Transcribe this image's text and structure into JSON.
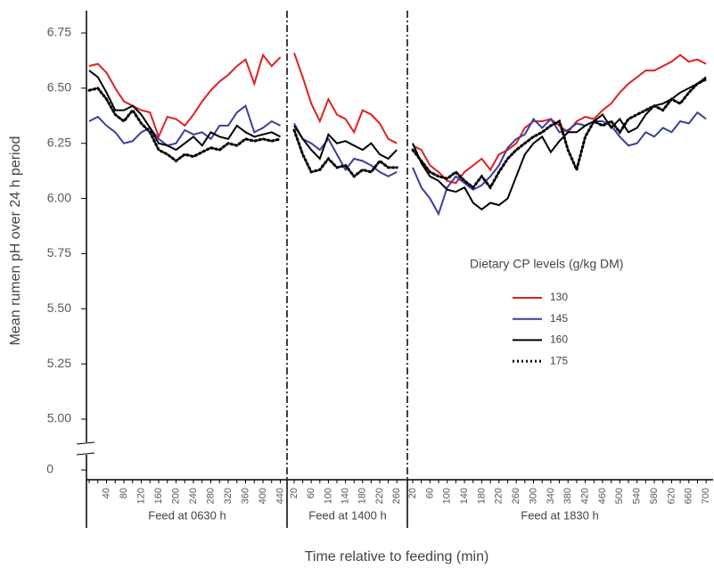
{
  "chart_data": {
    "type": "line",
    "y_label": "Mean rumen pH over 24 h period",
    "x_label": "Time relative to feeding (min)",
    "legend_title": "Dietary CP levels (g/kg DM)",
    "ylim": [
      5.0,
      6.75
    ],
    "yticks": [
      {
        "value": 5.0,
        "label": "5.00"
      },
      {
        "value": 5.25,
        "label": "5.25"
      },
      {
        "value": 5.5,
        "label": "5.50"
      },
      {
        "value": 5.75,
        "label": "5.75"
      },
      {
        "value": 6.0,
        "label": "6.00"
      },
      {
        "value": 6.25,
        "label": "6.25"
      },
      {
        "value": 6.5,
        "label": "6.50"
      },
      {
        "value": 6.75,
        "label": "6.75"
      }
    ],
    "ybreak_tick": 0,
    "panels": [
      {
        "label": "Feed at 0630 h",
        "categories": [
          null,
          null,
          "40",
          null,
          "80",
          null,
          "120",
          null,
          "160",
          null,
          "200",
          null,
          "240",
          null,
          "280",
          null,
          "320",
          null,
          "360",
          null,
          "400",
          null,
          "440"
        ]
      },
      {
        "label": "Feed at 1400 h",
        "categories": [
          "20",
          null,
          "60",
          null,
          "100",
          null,
          "140",
          null,
          "180",
          null,
          "220",
          null,
          "260"
        ]
      },
      {
        "label": "Feed at 1830 h",
        "categories": [
          "20",
          null,
          "60",
          null,
          "100",
          null,
          "140",
          null,
          "180",
          null,
          "220",
          null,
          "260",
          null,
          "300",
          null,
          "340",
          null,
          "380",
          null,
          "420",
          null,
          "460",
          null,
          "500",
          null,
          "540",
          null,
          "580",
          null,
          "620",
          null,
          "660",
          null,
          "700"
        ]
      }
    ],
    "series": [
      {
        "name": "130",
        "color": "#e02020",
        "style": "solid",
        "values": [
          [
            6.6,
            6.61,
            6.57,
            6.5,
            6.44,
            6.42,
            6.4,
            6.39,
            6.28,
            6.37,
            6.36,
            6.33,
            6.38,
            6.44,
            6.49,
            6.53,
            6.56,
            6.6,
            6.63,
            6.52,
            6.65,
            6.6,
            6.64
          ],
          [
            6.66,
            6.55,
            6.43,
            6.35,
            6.45,
            6.38,
            6.36,
            6.3,
            6.4,
            6.38,
            6.34,
            6.27,
            6.25
          ],
          [
            6.24,
            6.22,
            6.15,
            6.12,
            6.08,
            6.07,
            6.12,
            6.15,
            6.18,
            6.13,
            6.2,
            6.22,
            6.25,
            6.32,
            6.35,
            6.35,
            6.36,
            6.33,
            6.3,
            6.35,
            6.37,
            6.36,
            6.4,
            6.43,
            6.48,
            6.52,
            6.55,
            6.58,
            6.58,
            6.6,
            6.62,
            6.65,
            6.62,
            6.63,
            6.61
          ]
        ]
      },
      {
        "name": "145",
        "color": "#3a3f9e",
        "style": "solid",
        "values": [
          [
            6.35,
            6.37,
            6.33,
            6.3,
            6.25,
            6.26,
            6.3,
            6.32,
            6.27,
            6.24,
            6.25,
            6.31,
            6.29,
            6.3,
            6.27,
            6.33,
            6.33,
            6.39,
            6.42,
            6.3,
            6.32,
            6.35,
            6.33
          ],
          [
            6.34,
            6.27,
            6.25,
            6.22,
            6.27,
            6.2,
            6.13,
            6.18,
            6.17,
            6.15,
            6.12,
            6.1,
            6.12
          ],
          [
            6.14,
            6.05,
            6.0,
            5.93,
            6.05,
            6.1,
            6.07,
            6.04,
            6.06,
            6.1,
            6.15,
            6.23,
            6.27,
            6.29,
            6.36,
            6.32,
            6.36,
            6.3,
            6.31,
            6.34,
            6.33,
            6.35,
            6.35,
            6.33,
            6.28,
            6.24,
            6.25,
            6.3,
            6.28,
            6.32,
            6.3,
            6.35,
            6.34,
            6.39,
            6.36
          ]
        ]
      },
      {
        "name": "160",
        "color": "#000000",
        "style": "solid",
        "values": [
          [
            6.58,
            6.55,
            6.48,
            6.4,
            6.4,
            6.42,
            6.38,
            6.32,
            6.25,
            6.24,
            6.22,
            6.25,
            6.28,
            6.24,
            6.3,
            6.28,
            6.27,
            6.33,
            6.3,
            6.28,
            6.29,
            6.3,
            6.28
          ],
          [
            6.33,
            6.27,
            6.22,
            6.18,
            6.29,
            6.25,
            6.26,
            6.24,
            6.22,
            6.25,
            6.2,
            6.18,
            6.22
          ],
          [
            6.25,
            6.16,
            6.1,
            6.08,
            6.04,
            6.03,
            6.05,
            5.98,
            5.95,
            5.98,
            5.97,
            6.0,
            6.1,
            6.2,
            6.25,
            6.28,
            6.21,
            6.26,
            6.3,
            6.3,
            6.33,
            6.35,
            6.38,
            6.32,
            6.36,
            6.3,
            6.32,
            6.38,
            6.42,
            6.43,
            6.45,
            6.48,
            6.5,
            6.52,
            6.55
          ]
        ]
      },
      {
        "name": "175",
        "color": "#000000",
        "style": "dotted",
        "values": [
          [
            6.49,
            6.5,
            6.45,
            6.38,
            6.35,
            6.4,
            6.34,
            6.3,
            6.22,
            6.2,
            6.17,
            6.2,
            6.19,
            6.21,
            6.23,
            6.22,
            6.25,
            6.24,
            6.27,
            6.26,
            6.27,
            6.26,
            6.27
          ],
          [
            6.31,
            6.2,
            6.12,
            6.13,
            6.18,
            6.14,
            6.15,
            6.1,
            6.13,
            6.12,
            6.17,
            6.14,
            6.14
          ],
          [
            6.22,
            6.17,
            6.12,
            6.1,
            6.09,
            6.12,
            6.08,
            6.05,
            6.1,
            6.05,
            6.12,
            6.18,
            6.22,
            6.25,
            6.28,
            6.3,
            6.33,
            6.35,
            6.22,
            6.13,
            6.28,
            6.35,
            6.33,
            6.35,
            6.3,
            6.36,
            6.38,
            6.4,
            6.42,
            6.4,
            6.45,
            6.43,
            6.48,
            6.52,
            6.54
          ]
        ]
      }
    ]
  }
}
